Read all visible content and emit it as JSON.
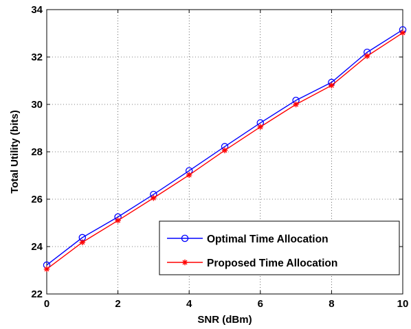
{
  "chart_data": {
    "type": "line",
    "xlabel": "SNR (dBm)",
    "ylabel": "Total Utility (bits)",
    "xlim": [
      0,
      10
    ],
    "ylim": [
      22,
      34
    ],
    "xticks": [
      "0",
      "2",
      "4",
      "6",
      "8",
      "10"
    ],
    "yticks": [
      "22",
      "24",
      "26",
      "28",
      "30",
      "32",
      "34"
    ],
    "grid": true,
    "legend_position": "bottom-right",
    "x": [
      0,
      1,
      2,
      3,
      4,
      5,
      6,
      7,
      8,
      9,
      10
    ],
    "series": [
      {
        "name": "Optimal Time Allocation",
        "color": "#0000ff",
        "marker": "circle",
        "values": [
          23.22,
          24.38,
          25.25,
          26.2,
          27.2,
          28.22,
          29.22,
          30.17,
          30.93,
          32.2,
          33.15
        ]
      },
      {
        "name": "Proposed Time Allocation",
        "color": "#ff0000",
        "marker": "star",
        "values": [
          23.05,
          24.18,
          25.1,
          26.05,
          27.02,
          28.06,
          29.05,
          30.0,
          30.8,
          32.04,
          33.02
        ]
      }
    ]
  }
}
